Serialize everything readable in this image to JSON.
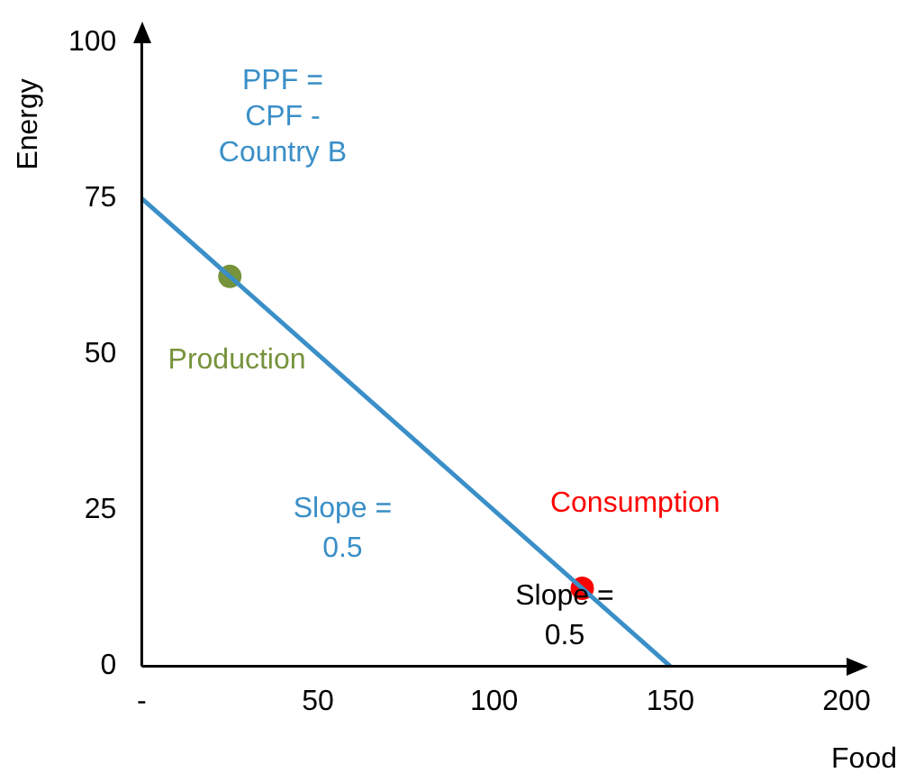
{
  "chart_data": {
    "type": "line",
    "xlabel": "Food",
    "ylabel": "Energy",
    "xlim": [
      0,
      200
    ],
    "xticks": [
      {
        "value": 0,
        "label": "-"
      },
      50,
      100,
      150,
      200
    ],
    "ylim": [
      0,
      100
    ],
    "yticks": [
      0,
      25,
      50,
      75,
      100
    ],
    "grid": false,
    "legend": false,
    "series": [
      {
        "name": "PPF = CPF - Country B",
        "color": "#3a8fc8",
        "x": [
          0,
          150
        ],
        "values": [
          75,
          0
        ]
      },
      {
        "name": "Production",
        "type": "scatter",
        "color": "#77933c",
        "x": [
          25
        ],
        "values": [
          62.5
        ]
      },
      {
        "name": "Consumption",
        "type": "scatter",
        "color": "#ff0000",
        "x": [
          125
        ],
        "values": [
          12.5
        ]
      }
    ],
    "annotations": [
      "Slope = 0.5",
      "Slope = 0.5"
    ]
  }
}
